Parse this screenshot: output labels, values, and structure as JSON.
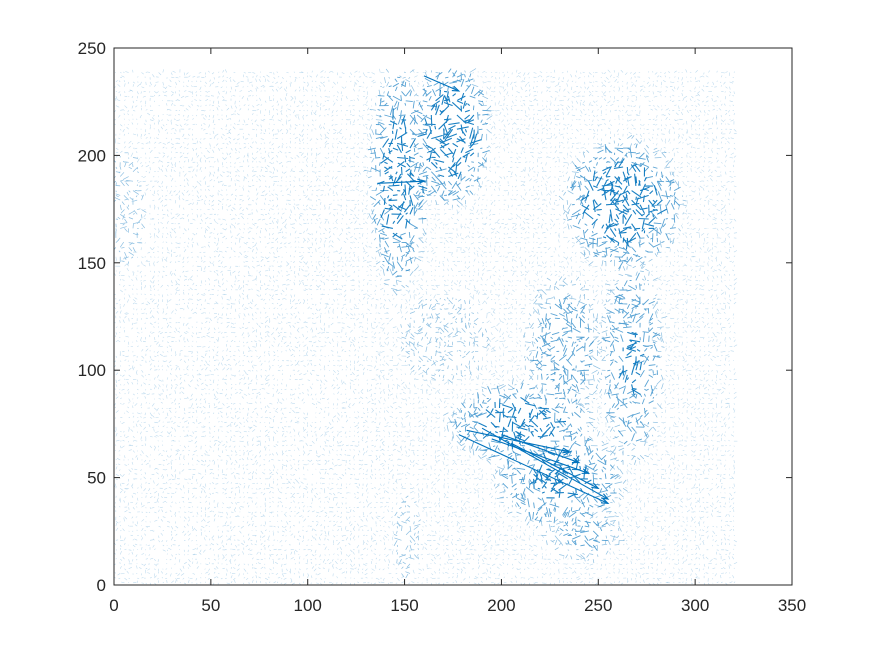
{
  "chart_data": {
    "type": "quiver",
    "title": "",
    "xlabel": "",
    "ylabel": "",
    "xlim": [
      0,
      350
    ],
    "ylim": [
      0,
      250
    ],
    "xticks": [
      "0",
      "50",
      "100",
      "150",
      "200",
      "250",
      "300",
      "350"
    ],
    "yticks": [
      "0",
      "50",
      "100",
      "150",
      "200",
      "250"
    ],
    "grid": false,
    "box": true,
    "field_extent": {
      "x": [
        0,
        320
      ],
      "y": [
        0,
        240
      ]
    },
    "arrow_color": "#0072BD",
    "background_color": "#ffffff",
    "axis_color": "#262626",
    "dense_regions": [
      {
        "x": [
          135,
          158
        ],
        "y": [
          140,
          240
        ],
        "strength": 0.9
      },
      {
        "x": [
          158,
          190
        ],
        "y": [
          180,
          240
        ],
        "strength": 1.0
      },
      {
        "x": [
          140,
          170
        ],
        "y": [
          183,
          190
        ],
        "strength": 0.8
      },
      {
        "x": [
          175,
          245
        ],
        "y": [
          60,
          90
        ],
        "strength": 0.9
      },
      {
        "x": [
          200,
          260
        ],
        "y": [
          30,
          70
        ],
        "strength": 0.85
      },
      {
        "x": [
          235,
          290
        ],
        "y": [
          150,
          205
        ],
        "strength": 0.95
      },
      {
        "x": [
          255,
          280
        ],
        "y": [
          60,
          150
        ],
        "strength": 0.8
      },
      {
        "x": [
          215,
          250
        ],
        "y": [
          80,
          140
        ],
        "strength": 0.7
      },
      {
        "x": [
          225,
          260
        ],
        "y": [
          15,
          35
        ],
        "strength": 0.6
      },
      {
        "x": [
          0,
          12
        ],
        "y": [
          150,
          200
        ],
        "strength": 0.5
      },
      {
        "x": [
          148,
          155
        ],
        "y": [
          5,
          40
        ],
        "strength": 0.5
      },
      {
        "x": [
          140,
          200
        ],
        "y": [
          90,
          140
        ],
        "strength": 0.35
      }
    ],
    "long_vectors": [
      {
        "x0": 178,
        "y0": 70,
        "x1": 255,
        "y1": 38
      },
      {
        "x0": 190,
        "y0": 73,
        "x1": 255,
        "y1": 40
      },
      {
        "x0": 200,
        "y0": 70,
        "x1": 240,
        "y1": 57
      },
      {
        "x0": 205,
        "y0": 66,
        "x1": 250,
        "y1": 45
      },
      {
        "x0": 182,
        "y0": 72,
        "x1": 235,
        "y1": 62
      },
      {
        "x0": 195,
        "y0": 68,
        "x1": 245,
        "y1": 52
      },
      {
        "x0": 136,
        "y0": 187,
        "x1": 160,
        "y1": 188
      },
      {
        "x0": 160,
        "y0": 237,
        "x1": 178,
        "y1": 230
      }
    ]
  }
}
